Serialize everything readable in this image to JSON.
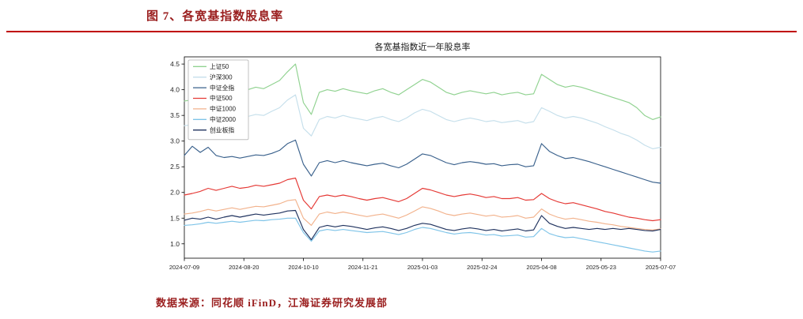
{
  "header": {
    "title": "图 7、各宽基指数股息率",
    "accent_color": "#9a1e1e",
    "rule_color": "#c00000"
  },
  "footer": {
    "source": "数据来源：同花顺 iFinD，江海证券研究发展部"
  },
  "chart_data": {
    "type": "line",
    "title": "各宽基指数近一年股息率",
    "xlabel": "",
    "ylabel": "",
    "grid": false,
    "legend_position": "upper-left",
    "ylim": [
      0.72,
      4.64
    ],
    "yticks": [
      "1.0",
      "1.5",
      "2.0",
      "2.5",
      "3.0",
      "3.5",
      "4.0",
      "4.5"
    ],
    "ytick_values": [
      1.0,
      1.5,
      2.0,
      2.5,
      3.0,
      3.5,
      4.0,
      4.5
    ],
    "x_tick_labels": [
      "2024-07-09",
      "2024-08-20",
      "2024-10-10",
      "2024-11-21",
      "2025-01-03",
      "2025-02-24",
      "2025-04-08",
      "2025-05-23",
      "2025-07-07"
    ],
    "series": [
      {
        "name": "上证50",
        "color": "#90d290",
        "values": [
          3.78,
          3.8,
          3.85,
          3.9,
          3.87,
          3.92,
          3.95,
          3.93,
          4.0,
          4.05,
          4.02,
          4.1,
          4.18,
          4.35,
          4.5,
          3.75,
          3.52,
          3.95,
          4.0,
          3.97,
          4.02,
          3.98,
          3.95,
          3.92,
          3.98,
          4.02,
          3.95,
          3.9,
          4.0,
          4.1,
          4.2,
          4.15,
          4.05,
          3.95,
          3.9,
          3.95,
          3.98,
          3.95,
          3.92,
          3.95,
          3.9,
          3.93,
          3.95,
          3.9,
          3.92,
          4.3,
          4.2,
          4.1,
          4.05,
          4.08,
          4.05,
          4.0,
          3.95,
          3.9,
          3.85,
          3.8,
          3.75,
          3.65,
          3.5,
          3.42,
          3.47
        ]
      },
      {
        "name": "沪深300",
        "color": "#c5dfeb",
        "values": [
          3.3,
          3.32,
          3.36,
          3.4,
          3.38,
          3.42,
          3.45,
          3.43,
          3.48,
          3.52,
          3.5,
          3.58,
          3.65,
          3.8,
          3.9,
          3.25,
          3.1,
          3.42,
          3.48,
          3.45,
          3.5,
          3.46,
          3.43,
          3.4,
          3.45,
          3.48,
          3.42,
          3.38,
          3.45,
          3.55,
          3.62,
          3.58,
          3.5,
          3.42,
          3.38,
          3.42,
          3.45,
          3.42,
          3.38,
          3.4,
          3.36,
          3.38,
          3.4,
          3.35,
          3.38,
          3.65,
          3.58,
          3.5,
          3.45,
          3.48,
          3.45,
          3.4,
          3.35,
          3.28,
          3.22,
          3.15,
          3.1,
          3.02,
          2.92,
          2.85,
          2.88
        ]
      },
      {
        "name": "中证全指",
        "color": "#3a618c",
        "values": [
          2.72,
          2.9,
          2.78,
          2.88,
          2.72,
          2.68,
          2.7,
          2.67,
          2.7,
          2.73,
          2.72,
          2.76,
          2.82,
          2.95,
          3.02,
          2.55,
          2.32,
          2.58,
          2.62,
          2.58,
          2.62,
          2.58,
          2.55,
          2.52,
          2.55,
          2.57,
          2.52,
          2.48,
          2.55,
          2.65,
          2.75,
          2.72,
          2.65,
          2.58,
          2.54,
          2.58,
          2.6,
          2.58,
          2.55,
          2.56,
          2.52,
          2.54,
          2.55,
          2.5,
          2.52,
          2.95,
          2.8,
          2.72,
          2.66,
          2.68,
          2.64,
          2.6,
          2.55,
          2.5,
          2.45,
          2.4,
          2.35,
          2.3,
          2.25,
          2.2,
          2.18
        ]
      },
      {
        "name": "中证500",
        "color": "#e53935",
        "values": [
          1.95,
          1.98,
          2.02,
          2.08,
          2.04,
          2.08,
          2.12,
          2.08,
          2.1,
          2.14,
          2.12,
          2.15,
          2.18,
          2.25,
          2.28,
          1.85,
          1.68,
          1.92,
          1.95,
          1.92,
          1.95,
          1.92,
          1.88,
          1.85,
          1.88,
          1.9,
          1.86,
          1.82,
          1.88,
          1.98,
          2.08,
          2.05,
          2.0,
          1.95,
          1.92,
          1.95,
          1.97,
          1.94,
          1.9,
          1.92,
          1.88,
          1.88,
          1.9,
          1.85,
          1.86,
          1.98,
          1.88,
          1.82,
          1.78,
          1.8,
          1.76,
          1.72,
          1.68,
          1.63,
          1.6,
          1.56,
          1.52,
          1.5,
          1.47,
          1.45,
          1.47
        ]
      },
      {
        "name": "中证1000",
        "color": "#f2b28c",
        "values": [
          1.58,
          1.6,
          1.63,
          1.67,
          1.64,
          1.67,
          1.7,
          1.67,
          1.7,
          1.73,
          1.72,
          1.75,
          1.78,
          1.84,
          1.86,
          1.5,
          1.36,
          1.58,
          1.62,
          1.59,
          1.62,
          1.59,
          1.56,
          1.53,
          1.56,
          1.58,
          1.54,
          1.5,
          1.56,
          1.64,
          1.72,
          1.69,
          1.64,
          1.58,
          1.55,
          1.58,
          1.6,
          1.57,
          1.54,
          1.56,
          1.52,
          1.53,
          1.55,
          1.5,
          1.52,
          1.68,
          1.58,
          1.52,
          1.48,
          1.5,
          1.47,
          1.44,
          1.42,
          1.39,
          1.37,
          1.34,
          1.32,
          1.3,
          1.28,
          1.27,
          1.29
        ]
      },
      {
        "name": "中证2000",
        "color": "#7fc4e8",
        "values": [
          1.36,
          1.37,
          1.39,
          1.42,
          1.4,
          1.42,
          1.44,
          1.42,
          1.44,
          1.46,
          1.45,
          1.47,
          1.48,
          1.5,
          1.5,
          1.22,
          1.05,
          1.25,
          1.28,
          1.26,
          1.28,
          1.26,
          1.24,
          1.22,
          1.23,
          1.24,
          1.21,
          1.18,
          1.22,
          1.28,
          1.32,
          1.3,
          1.26,
          1.22,
          1.19,
          1.21,
          1.22,
          1.2,
          1.17,
          1.18,
          1.15,
          1.16,
          1.17,
          1.13,
          1.14,
          1.3,
          1.2,
          1.15,
          1.12,
          1.13,
          1.1,
          1.07,
          1.04,
          1.01,
          0.98,
          0.95,
          0.92,
          0.89,
          0.86,
          0.84,
          0.86
        ]
      },
      {
        "name": "创业板指",
        "color": "#20335f",
        "values": [
          1.46,
          1.5,
          1.48,
          1.52,
          1.48,
          1.52,
          1.55,
          1.52,
          1.55,
          1.58,
          1.56,
          1.58,
          1.6,
          1.64,
          1.65,
          1.28,
          1.08,
          1.32,
          1.36,
          1.33,
          1.36,
          1.34,
          1.31,
          1.28,
          1.31,
          1.33,
          1.3,
          1.26,
          1.3,
          1.36,
          1.4,
          1.38,
          1.33,
          1.28,
          1.26,
          1.29,
          1.31,
          1.29,
          1.26,
          1.28,
          1.25,
          1.27,
          1.29,
          1.25,
          1.27,
          1.55,
          1.4,
          1.34,
          1.3,
          1.32,
          1.3,
          1.28,
          1.3,
          1.28,
          1.3,
          1.28,
          1.3,
          1.28,
          1.26,
          1.25,
          1.28
        ]
      }
    ]
  }
}
